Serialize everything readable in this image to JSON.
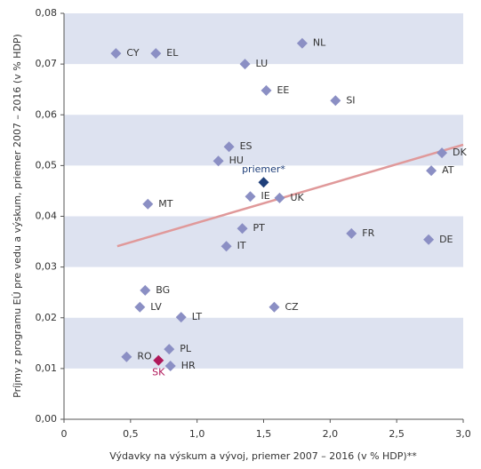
{
  "chart_data": {
    "type": "scatter",
    "xlabel": "Výdavky na výskum a vývoj, priemer 2007 – 2016 (v % HDP)**",
    "ylabel": "Príjmy z programu EÚ pre vedu a výskum, priemer 2007 – 2016 (v % HDP)",
    "xlim": [
      0,
      3.0
    ],
    "xticks": [
      0,
      {
        "value": 0.5,
        "label": "0,5"
      },
      {
        "value": 1.0,
        "label": "1,0"
      },
      {
        "value": 1.5,
        "label": "1,5"
      },
      {
        "value": 2.0,
        "label": "2,0"
      },
      {
        "value": 2.5,
        "label": "2,5"
      },
      {
        "value": 3.0,
        "label": "3,0"
      }
    ],
    "ylim": [
      0,
      0.08
    ],
    "yticks": [
      {
        "value": 0,
        "label": "0,00"
      },
      {
        "value": 0.01,
        "label": "0,01"
      },
      {
        "value": 0.02,
        "label": "0,02"
      },
      {
        "value": 0.03,
        "label": "0,03"
      },
      {
        "value": 0.04,
        "label": "0,04"
      },
      {
        "value": 0.05,
        "label": "0,05"
      },
      {
        "value": 0.06,
        "label": "0,06"
      },
      {
        "value": 0.07,
        "label": "0,07"
      },
      {
        "value": 0.08,
        "label": "0,08"
      }
    ],
    "band_color": "#dde2f0",
    "series": [
      {
        "color": "#8b8fc4",
        "label_color": "#333333",
        "labels": [
          "CY",
          "EL",
          "NL",
          "LU",
          "EE",
          "SI",
          "ES",
          "HU",
          "DK",
          "AT",
          "IE",
          "UK",
          "MT",
          "PT",
          "FR",
          "DE",
          "IT",
          "BG",
          "LV",
          "LT",
          "CZ",
          "PL",
          "RO",
          "HR"
        ],
        "x": [
          0.39,
          0.69,
          1.79,
          1.36,
          1.52,
          2.04,
          1.24,
          1.16,
          2.84,
          2.76,
          1.4,
          1.62,
          0.63,
          1.34,
          2.16,
          2.74,
          1.22,
          0.61,
          0.57,
          0.88,
          1.58,
          0.79,
          0.47,
          0.8
        ],
        "values": [
          0.0721,
          0.0721,
          0.0741,
          0.07,
          0.0648,
          0.0628,
          0.0537,
          0.0509,
          0.0525,
          0.049,
          0.0439,
          0.0436,
          0.0424,
          0.0376,
          0.0366,
          0.0354,
          0.0341,
          0.0254,
          0.0221,
          0.0201,
          0.0221,
          0.0138,
          0.0123,
          0.0105
        ]
      },
      {
        "color": "#1f3f7a",
        "label_color": "#1f3f7a",
        "labels": [
          "priemer*"
        ],
        "x": [
          1.5
        ],
        "values": [
          0.0467
        ]
      },
      {
        "color": "#b0185a",
        "label_color": "#b0185a",
        "labels": [
          "SK"
        ],
        "x": [
          0.71
        ],
        "values": [
          0.0116
        ]
      }
    ],
    "trendline": {
      "color": "#e0999a",
      "x": [
        0.4,
        3.0
      ],
      "values": [
        0.0341,
        0.0541
      ]
    }
  }
}
